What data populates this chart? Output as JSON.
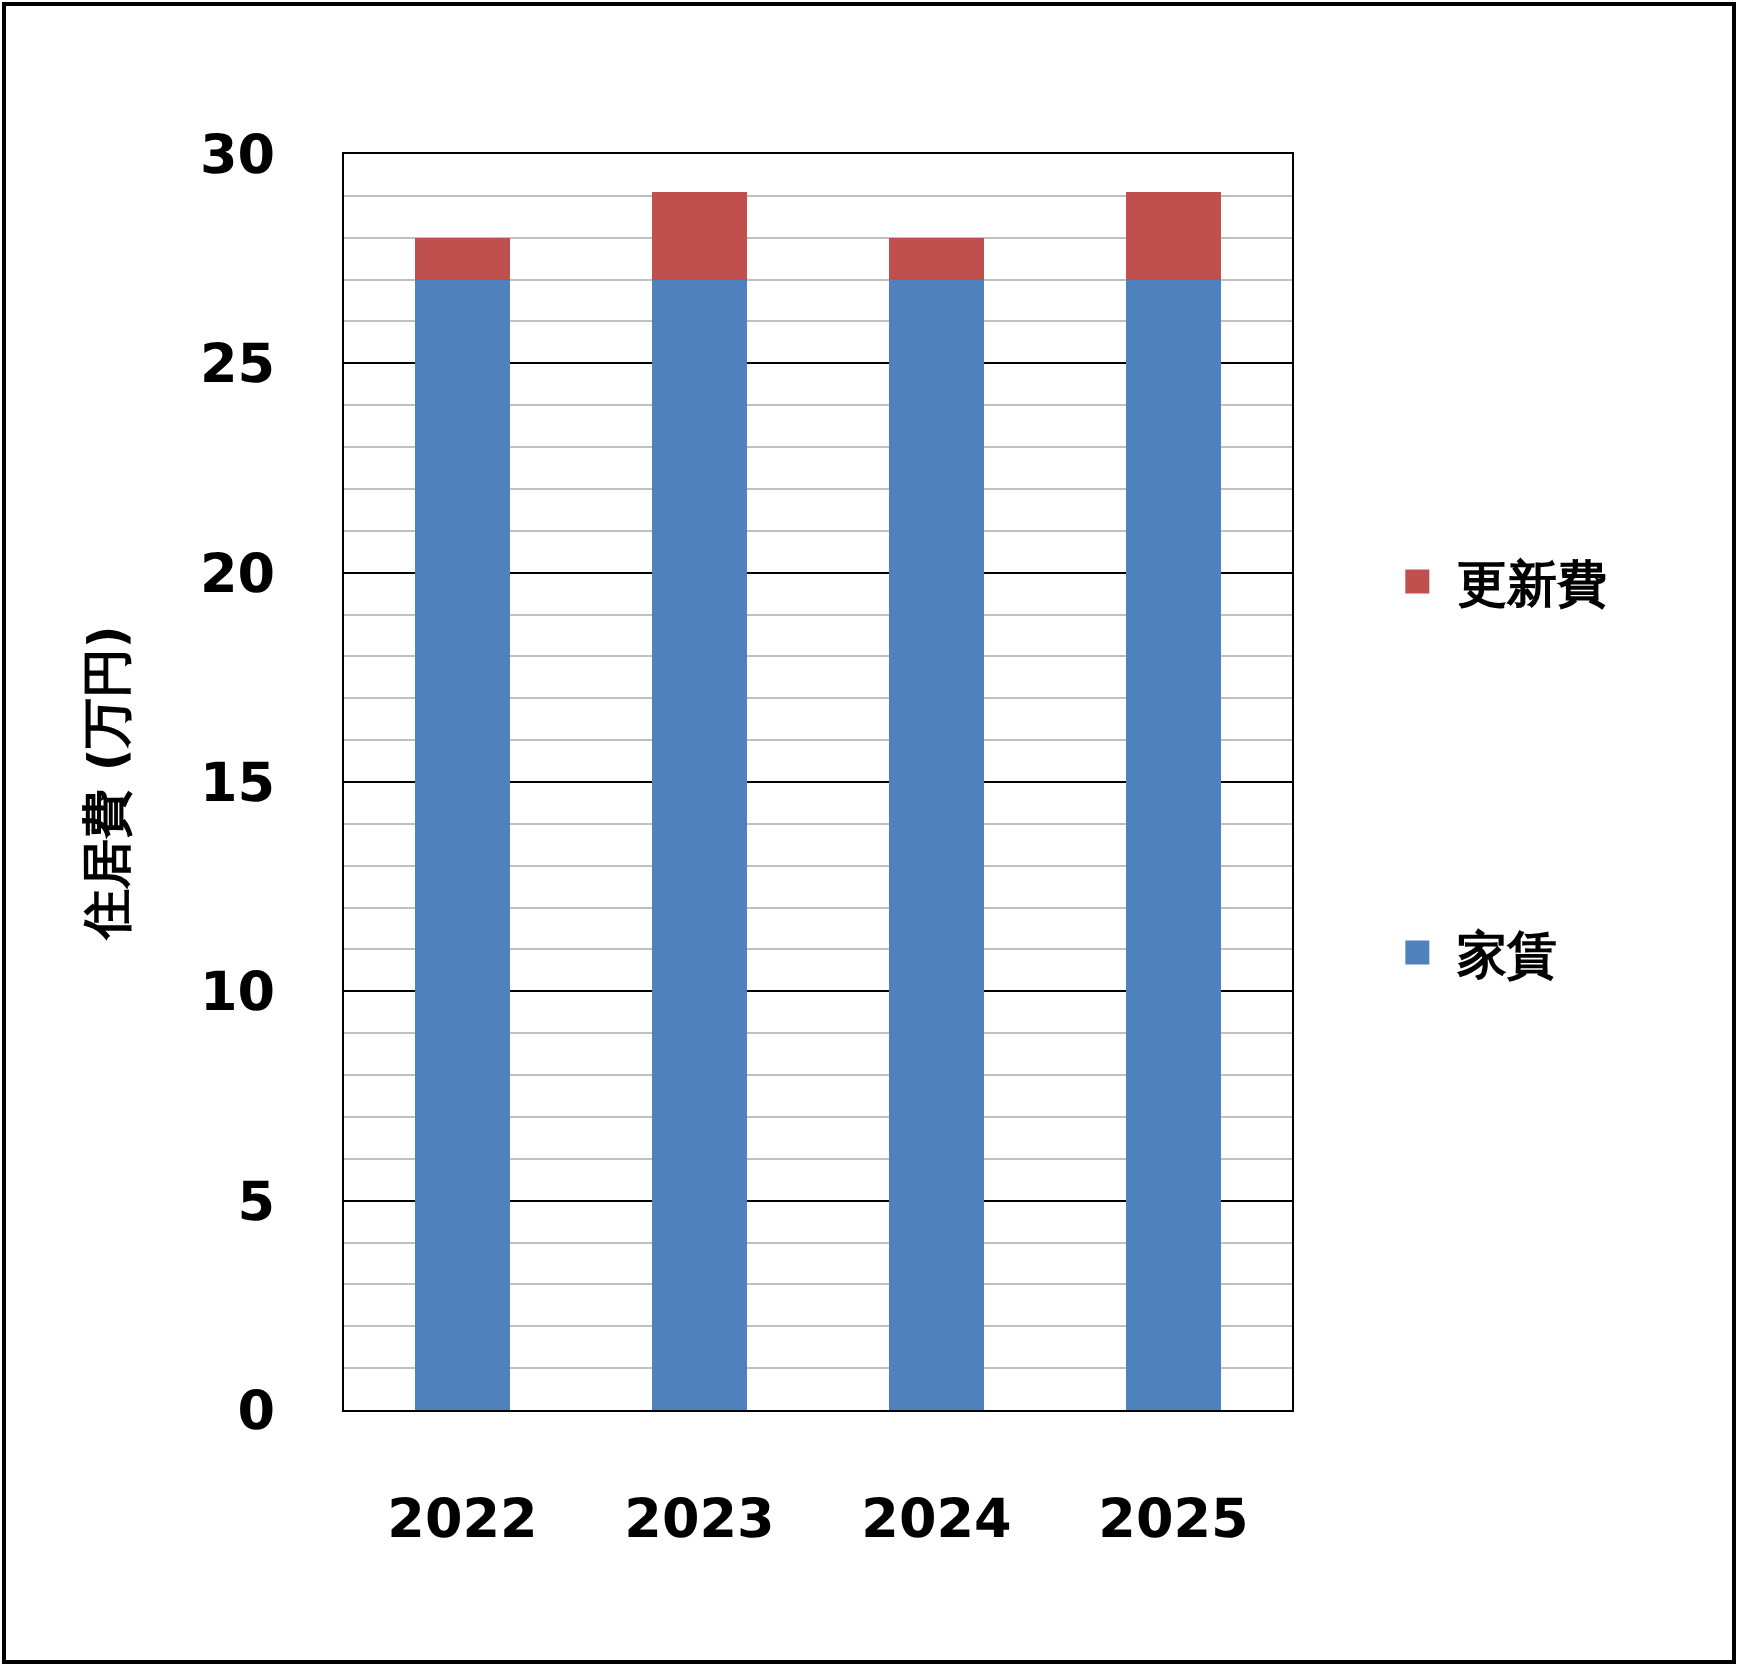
{
  "chart_data": {
    "type": "bar",
    "stacked": true,
    "categories": [
      "2022",
      "2023",
      "2024",
      "2025"
    ],
    "ylabel": "住居費 (万円)",
    "series": [
      {
        "name": "家賃",
        "color": "#4f81bd",
        "values": [
          27,
          27,
          27,
          27
        ]
      },
      {
        "name": "更新費",
        "color": "#c0504d",
        "values": [
          1,
          2.1,
          1,
          2.1
        ]
      }
    ],
    "ylim": [
      0,
      30
    ],
    "yticks": [
      0,
      {
        "value": 1,
        "label": null
      },
      {
        "value": 2,
        "label": null
      },
      {
        "value": 3,
        "label": null
      },
      {
        "value": 4,
        "label": null
      },
      5,
      {
        "value": 6,
        "label": null
      },
      {
        "value": 7,
        "label": null
      },
      {
        "value": 8,
        "label": null
      },
      {
        "value": 9,
        "label": null
      },
      10,
      {
        "value": 11,
        "label": null
      },
      {
        "value": 12,
        "label": null
      },
      {
        "value": 13,
        "label": null
      },
      {
        "value": 14,
        "label": null
      },
      15,
      {
        "value": 16,
        "label": null
      },
      {
        "value": 17,
        "label": null
      },
      {
        "value": 18,
        "label": null
      },
      {
        "value": 19,
        "label": null
      },
      20,
      {
        "value": 21,
        "label": null
      },
      {
        "value": 22,
        "label": null
      },
      {
        "value": 23,
        "label": null
      },
      {
        "value": 24,
        "label": null
      },
      25,
      {
        "value": 26,
        "label": null
      },
      {
        "value": 27,
        "label": null
      },
      {
        "value": 28,
        "label": null
      },
      {
        "value": 29,
        "label": null
      },
      30
    ],
    "grid": "y",
    "legend": "right"
  }
}
